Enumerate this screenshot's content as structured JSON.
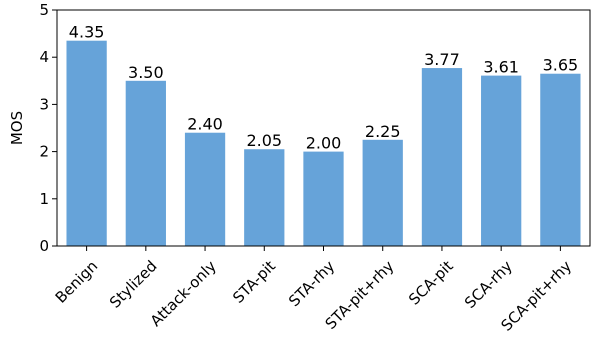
{
  "chart_data": {
    "type": "bar",
    "title": "",
    "xlabel": "",
    "ylabel": "MOS",
    "ylim": [
      0,
      5
    ],
    "yticks": [
      0,
      1,
      2,
      3,
      4,
      5
    ],
    "categories": [
      "Benign",
      "Stylized",
      "Attack-only",
      "STA-pit",
      "STA-rhy",
      "STA-pit+rhy",
      "SCA-pit",
      "SCA-rhy",
      "SCA-pit+rhy"
    ],
    "values": [
      4.35,
      3.5,
      2.4,
      2.05,
      2.0,
      2.25,
      3.77,
      3.61,
      3.65
    ],
    "value_labels": [
      "4.35",
      "3.50",
      "2.40",
      "2.05",
      "2.00",
      "2.25",
      "3.77",
      "3.61",
      "3.65"
    ],
    "bar_color": "#66a3d9",
    "grid": false,
    "legend": "none"
  }
}
